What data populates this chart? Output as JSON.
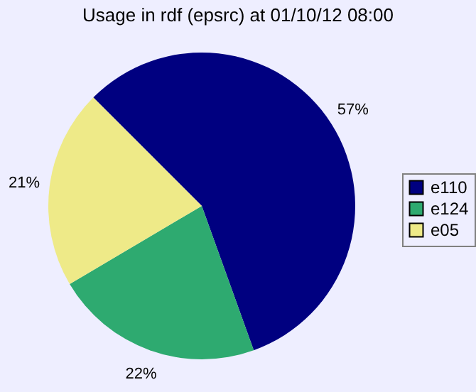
{
  "chart_data": {
    "type": "pie",
    "title": "Usage in rdf (epsrc) at 01/10/12 08:00",
    "categories": [
      "e110",
      "e124",
      "e05"
    ],
    "values": [
      57,
      22,
      21
    ],
    "colors": [
      "#000080",
      "#2eaa70",
      "#eeea88"
    ],
    "value_labels": [
      "57%",
      "22%",
      "21%"
    ],
    "legend": "right"
  }
}
